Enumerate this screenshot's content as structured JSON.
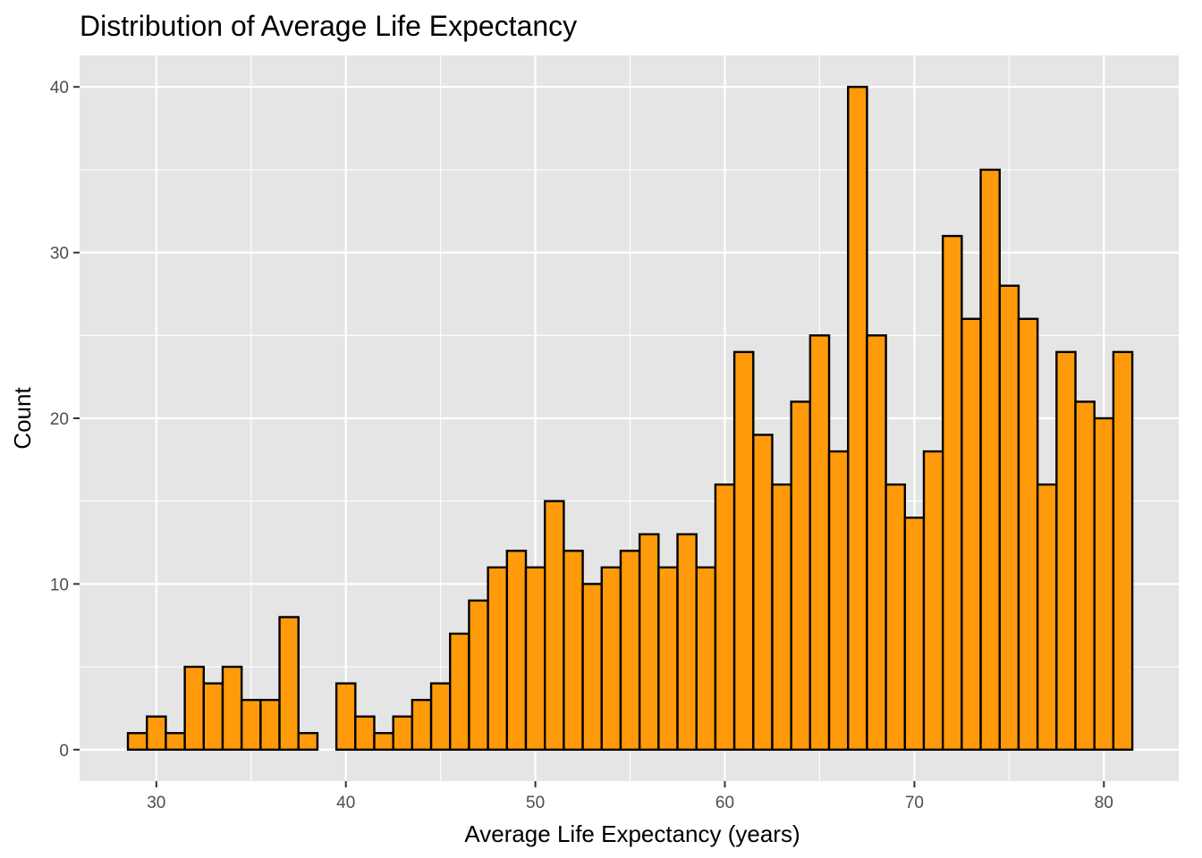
{
  "chart_data": {
    "type": "bar",
    "title": "Distribution of Average Life Expectancy",
    "xlabel": "Average Life Expectancy (years)",
    "ylabel": "Count",
    "xlim": [
      25.95,
      83.95
    ],
    "ylim": [
      -1.9,
      41.9
    ],
    "x_ticks": [
      30,
      40,
      50,
      60,
      70,
      80
    ],
    "y_ticks": [
      0,
      10,
      20,
      30,
      40
    ],
    "x_minor_ticks": [
      25,
      35,
      45,
      55,
      65,
      75
    ],
    "y_minor_ticks": [
      5,
      15,
      25,
      35
    ],
    "bin_width": 1,
    "bin_start": 28.5,
    "values": [
      1,
      2,
      1,
      5,
      4,
      5,
      3,
      3,
      8,
      1,
      0,
      4,
      2,
      1,
      2,
      3,
      4,
      7,
      9,
      11,
      12,
      11,
      15,
      12,
      10,
      11,
      12,
      13,
      11,
      13,
      11,
      16,
      24,
      19,
      16,
      21,
      25,
      18,
      40,
      25,
      16,
      14,
      18,
      31,
      26,
      35,
      28,
      26,
      16,
      24,
      21,
      20,
      24
    ],
    "grid": true,
    "legend": "none",
    "colors": {
      "bar_fill": "#FF9A0A",
      "bar_edge": "#000000",
      "panel_background": "#E5E5E5",
      "grid": "#FFFFFF"
    }
  }
}
